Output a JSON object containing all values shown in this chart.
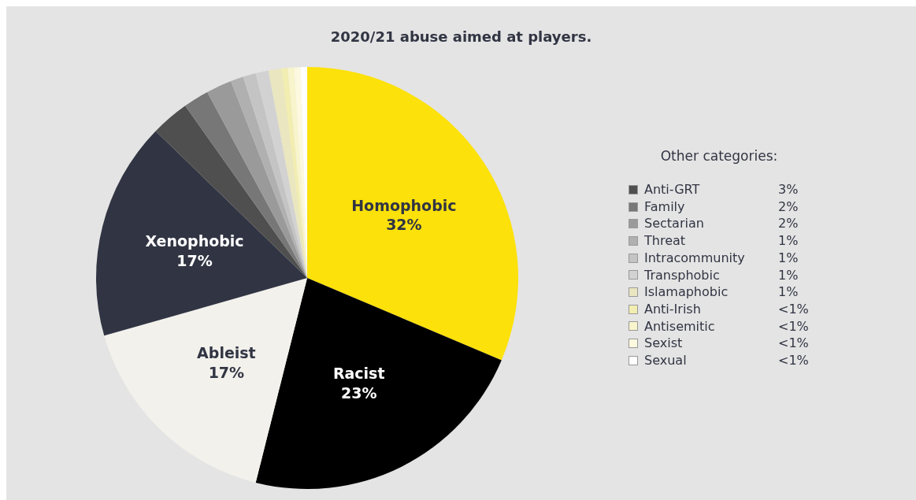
{
  "chart_data": {
    "type": "pie",
    "title": "2020/21 abuse aimed at players.",
    "categories": [
      "Homophobic",
      "Racist",
      "Ableist",
      "Xenophobic",
      "Anti-GRT",
      "Family",
      "Sectarian",
      "Threat",
      "Intracommunity",
      "Transphobic",
      "Islamaphobic",
      "Anti-Irish",
      "Antisemitic",
      "Sexist",
      "Sexual"
    ],
    "values": [
      32,
      23,
      17,
      17,
      3,
      2,
      2,
      1,
      1,
      1,
      1,
      0.5,
      0.5,
      0.5,
      0.5
    ],
    "value_labels": [
      "32%",
      "23%",
      "17%",
      "17%",
      "3%",
      "2%",
      "2%",
      "1%",
      "1%",
      "1%",
      "1%",
      "<1%",
      "<1%",
      "<1%",
      "<1%"
    ],
    "colors": [
      "#fce10a",
      "#000000",
      "#f2f1ec",
      "#313543",
      "#4f4f4f",
      "#777777",
      "#9a9a9a",
      "#b0b0b0",
      "#c4c4c4",
      "#d2d2d2",
      "#e9e6c0",
      "#f2edb0",
      "#f8f4cc",
      "#fdf9e0",
      "#ffffff"
    ],
    "annotations": [
      "Other categories:"
    ],
    "legend": "right"
  }
}
